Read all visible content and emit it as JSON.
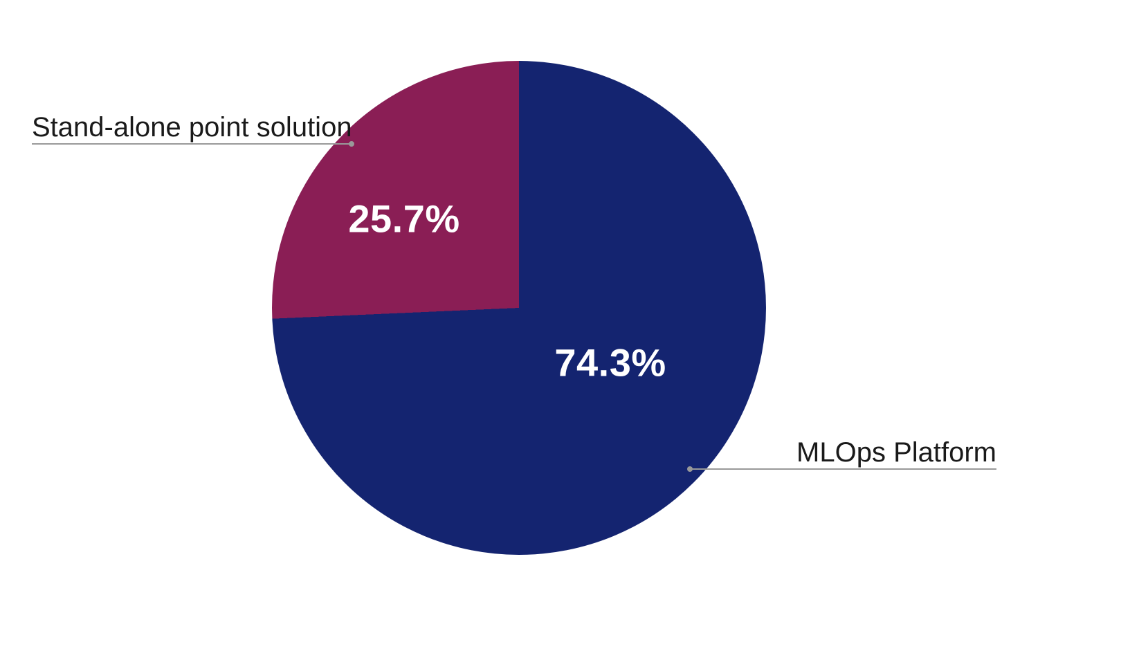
{
  "chart_data": {
    "type": "pie",
    "title": "",
    "legend": "none",
    "direction": "clockwise",
    "start_angle": "12 o'clock",
    "background": "#ffffff",
    "value_label_color": "#ffffff",
    "slice_label_color": "#1a1a1a",
    "leader_line_color": "#999999",
    "slices": [
      {
        "label": "MLOps Platform",
        "value": 74.3,
        "value_label": "74.3%",
        "color": "#142470"
      },
      {
        "label": "Stand-alone point solution",
        "value": 25.7,
        "value_label": "25.7%",
        "color": "#8A1E55"
      }
    ]
  }
}
